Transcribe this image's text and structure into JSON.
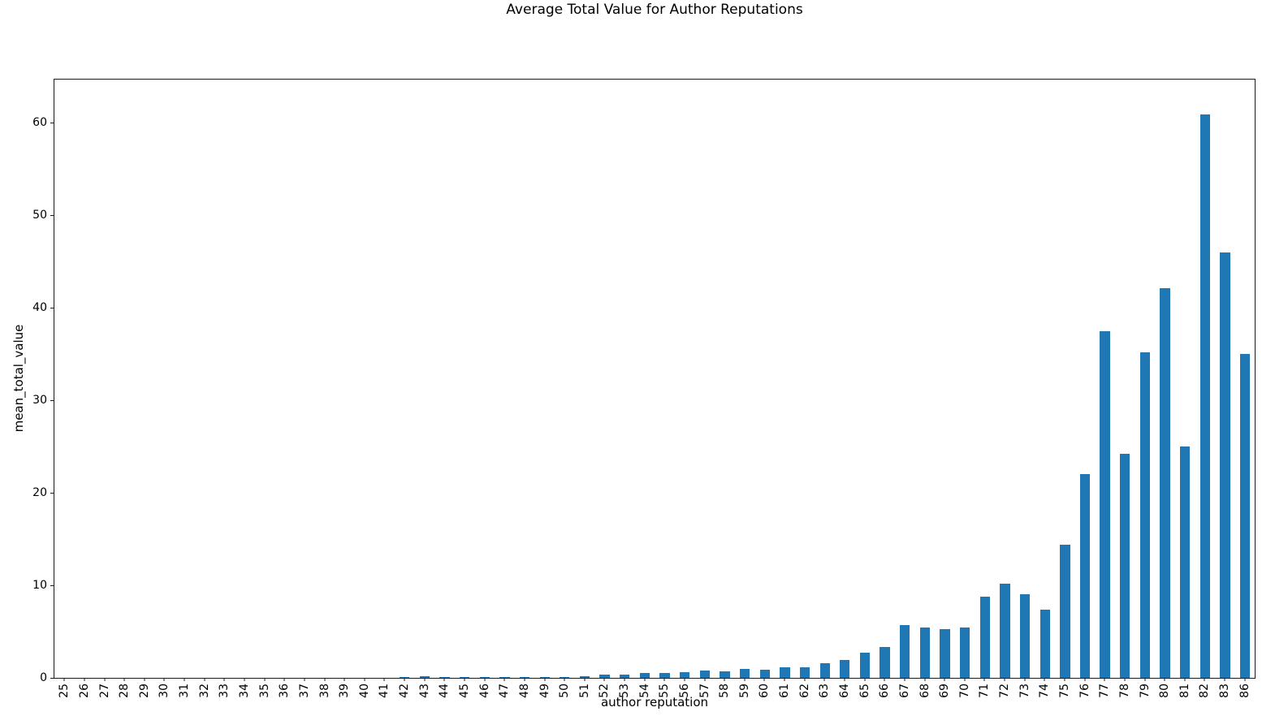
{
  "chart_data": {
    "type": "bar",
    "title": "Average Total Value for Author Reputations",
    "xlabel": "author reputation",
    "ylabel": "mean_total_value",
    "bar_color": "#1f77b4",
    "grid": false,
    "legend_position": "none",
    "x_tick_rotation": 90,
    "ylim": [
      0,
      64.65
    ],
    "yticks": [
      0,
      10,
      20,
      30,
      40,
      50,
      60
    ],
    "categories": [
      "25",
      "26",
      "27",
      "28",
      "29",
      "30",
      "31",
      "32",
      "33",
      "34",
      "35",
      "36",
      "37",
      "38",
      "39",
      "40",
      "41",
      "42",
      "43",
      "44",
      "45",
      "46",
      "47",
      "48",
      "49",
      "50",
      "51",
      "52",
      "53",
      "54",
      "55",
      "56",
      "57",
      "58",
      "59",
      "60",
      "61",
      "62",
      "63",
      "64",
      "65",
      "66",
      "67",
      "68",
      "69",
      "70",
      "71",
      "72",
      "73",
      "74",
      "75",
      "76",
      "77",
      "78",
      "79",
      "80",
      "81",
      "82",
      "83",
      "86"
    ],
    "values": [
      0,
      0,
      0,
      0,
      0,
      0,
      0,
      0,
      0,
      0,
      0,
      0,
      0,
      0,
      0,
      0,
      0,
      0.07,
      0.19,
      0.09,
      0.09,
      0.1,
      0.1,
      0.12,
      0.09,
      0.1,
      0.2,
      0.37,
      0.35,
      0.5,
      0.5,
      0.61,
      0.79,
      0.7,
      0.99,
      0.9,
      1.14,
      1.11,
      1.6,
      1.95,
      2.7,
      3.3,
      5.7,
      5.4,
      5.25,
      5.45,
      8.75,
      10.2,
      9.0,
      7.4,
      14.4,
      22.0,
      37.5,
      24.2,
      35.2,
      42.1,
      25.0,
      60.9,
      46.0,
      35.0
    ]
  }
}
